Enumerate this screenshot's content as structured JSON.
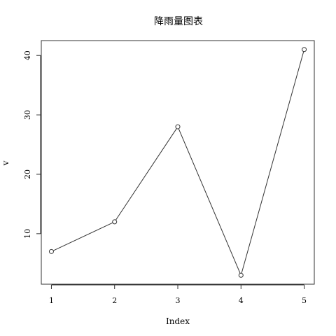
{
  "chart_data": {
    "type": "line",
    "title": "降雨量图表",
    "xlabel": "Index",
    "ylabel": "v",
    "x": [
      1,
      2,
      3,
      4,
      5
    ],
    "x_ticks": [
      "1",
      "2",
      "3",
      "4",
      "5"
    ],
    "y_ticks": [
      "10",
      "20",
      "30",
      "40"
    ],
    "values": [
      7,
      12,
      28,
      3,
      41
    ],
    "xlim": [
      0.84,
      5.16
    ],
    "ylim": [
      1.5,
      42.5
    ],
    "grid": false,
    "marker": "open-circle",
    "line_color": "#333333"
  }
}
